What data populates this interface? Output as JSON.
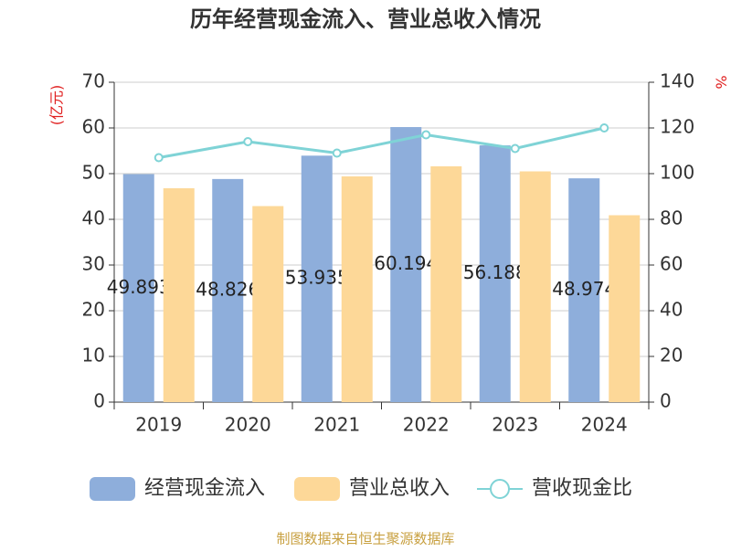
{
  "chart_data": {
    "type": "bar",
    "title": "历年经营现金流入、营业总收入情况",
    "y_label": "(亿元)",
    "y2_label": "%",
    "categories": [
      "2019",
      "2020",
      "2021",
      "2022",
      "2023",
      "2024"
    ],
    "series": [
      {
        "name": "经营现金流入",
        "type": "bar",
        "color": "#8eaedb",
        "values": [
          49.893,
          48.826,
          53.935,
          60.194,
          56.188,
          48.974
        ],
        "show_labels": true
      },
      {
        "name": "营业总收入",
        "type": "bar",
        "color": "#fdd898",
        "values": [
          46.8,
          42.9,
          49.4,
          51.6,
          50.5,
          40.9
        ]
      },
      {
        "name": "营收现金比",
        "type": "line",
        "axis": "y2",
        "color": "#7fd3d6",
        "values": [
          107,
          114,
          109,
          117,
          111,
          120
        ]
      }
    ],
    "ylim": [
      0,
      70
    ],
    "yticks": [
      0,
      10,
      20,
      30,
      40,
      50,
      60,
      70
    ],
    "y2lim": [
      0,
      140
    ],
    "y2ticks": [
      0,
      20,
      40,
      60,
      80,
      100,
      120,
      140
    ],
    "grid": true,
    "source": "制图数据来自恒生聚源数据库"
  }
}
